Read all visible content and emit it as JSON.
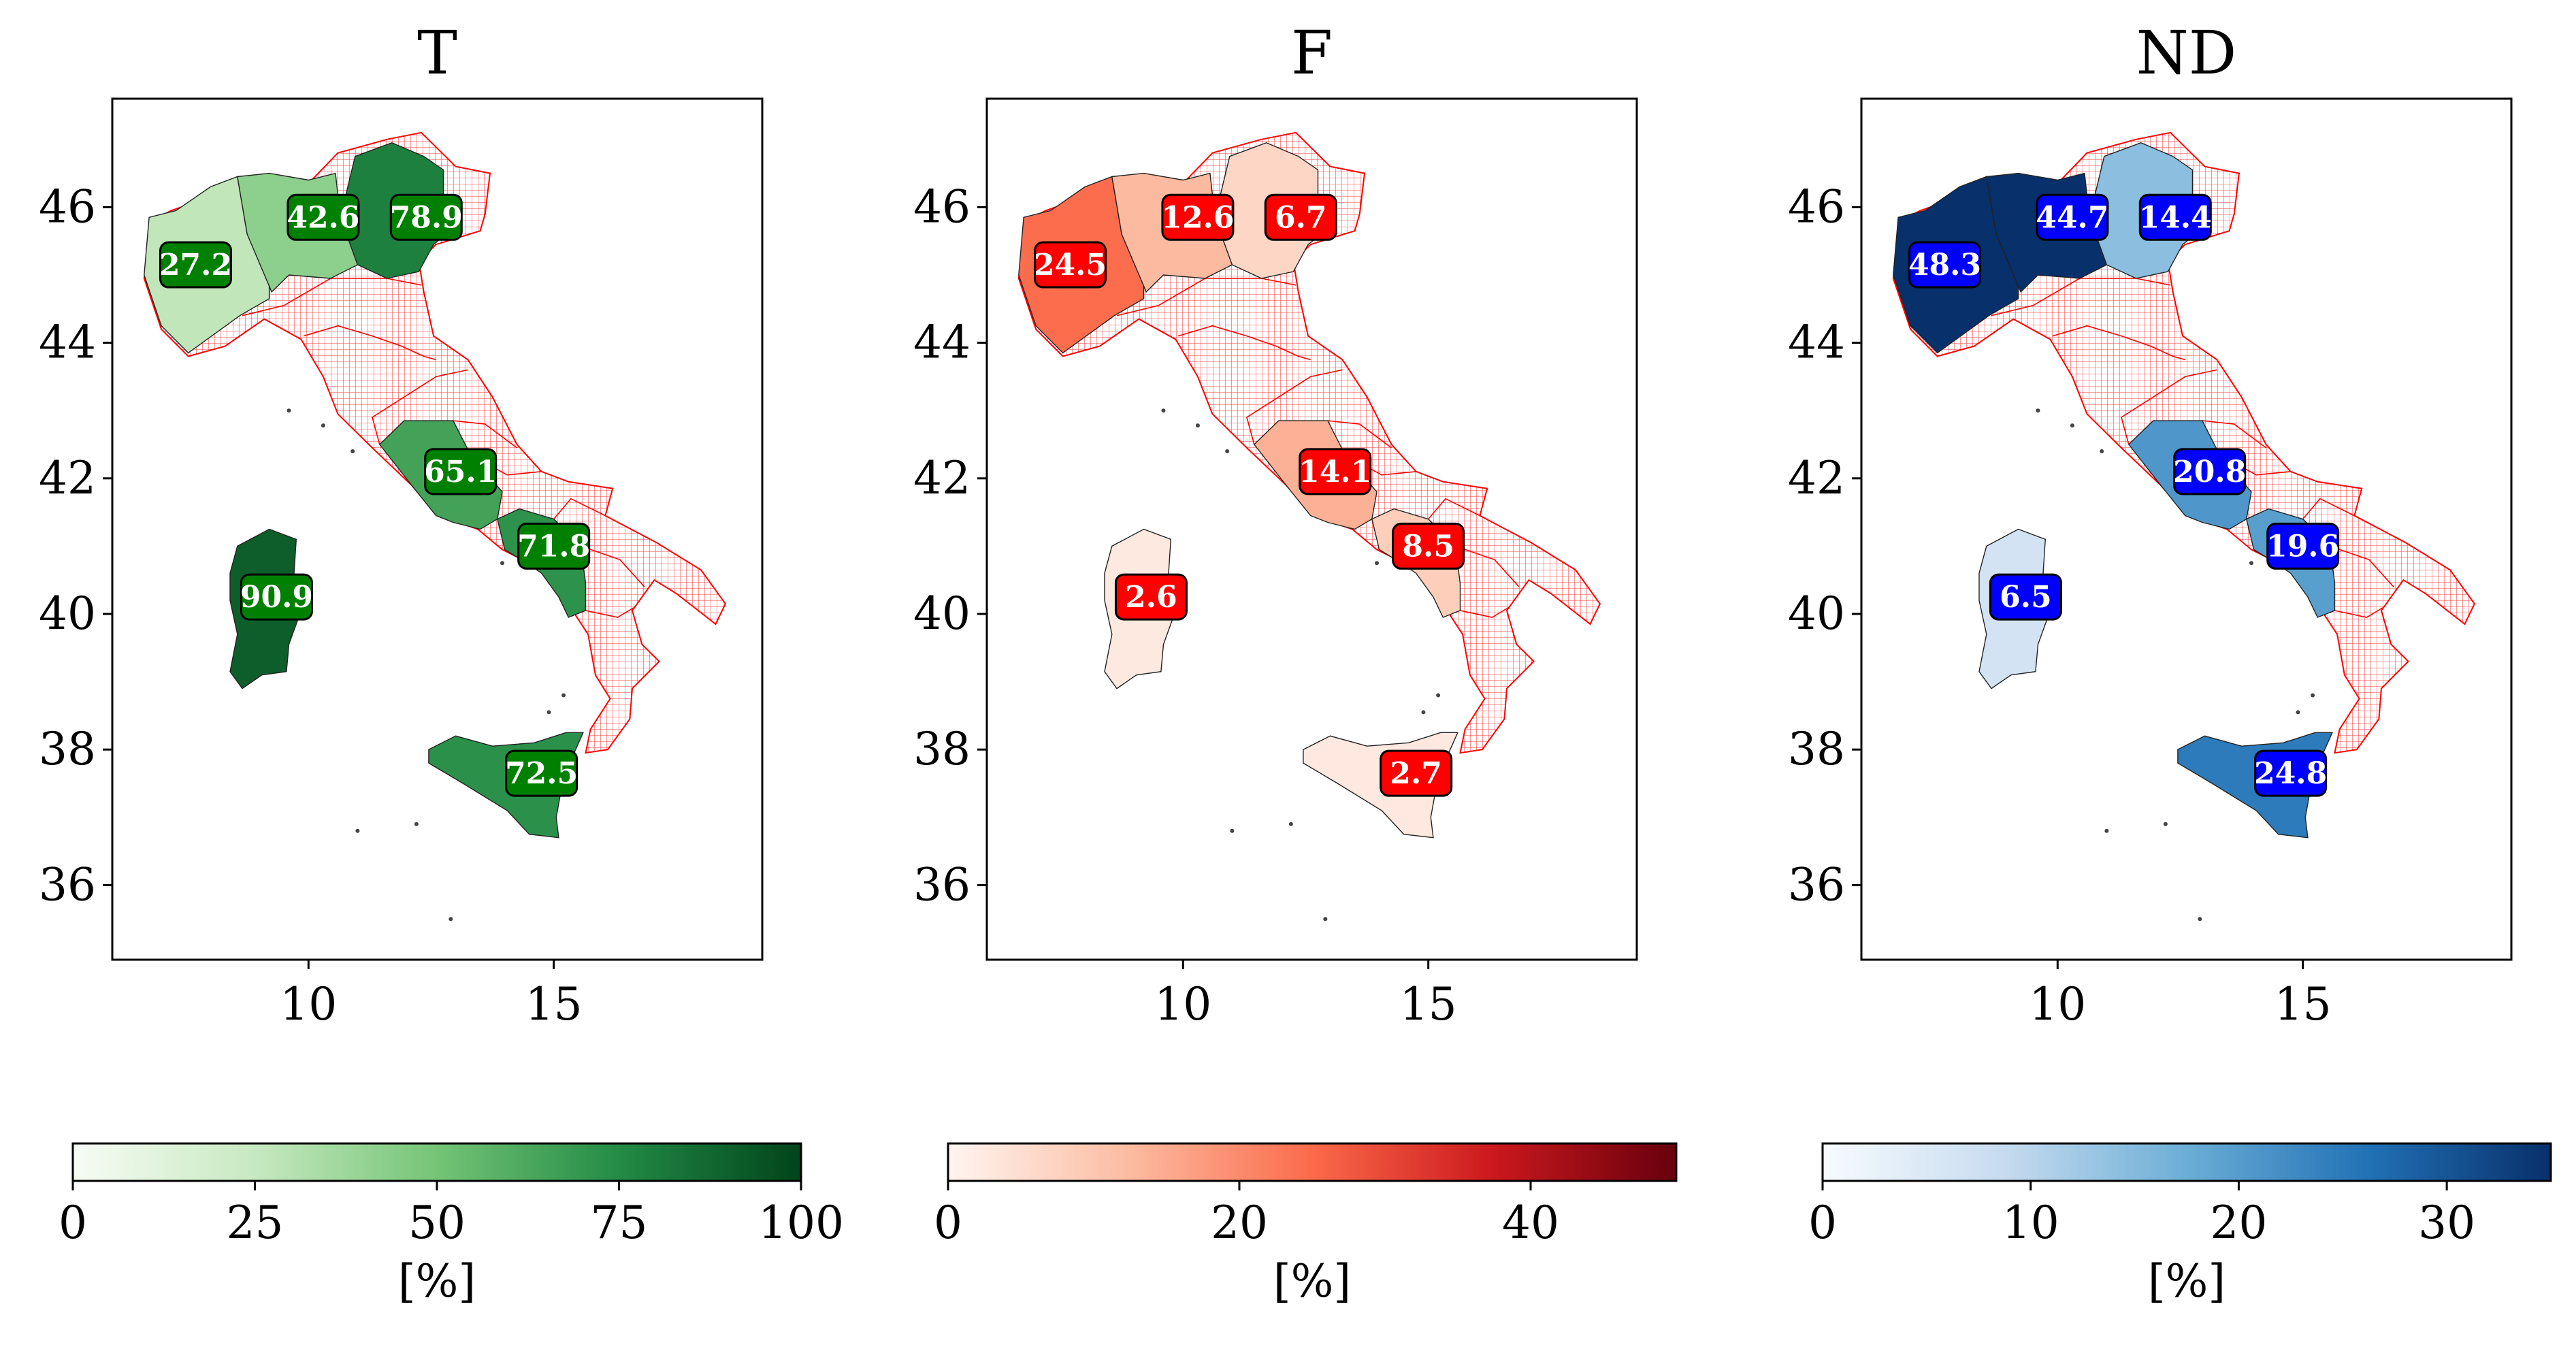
{
  "panels": [
    {
      "title": "T",
      "x_ticks": [
        "10",
        "15"
      ],
      "y_ticks": [
        "46",
        "44",
        "42",
        "40",
        "38",
        "36"
      ],
      "colormap": [
        "#f7fcf5",
        "#c7e9c0",
        "#74c476",
        "#238b45",
        "#00441b"
      ],
      "label_box_color": "#008000",
      "colorbar": {
        "min": 0,
        "max": 100,
        "ticks": [
          "0",
          "25",
          "50",
          "75",
          "100"
        ],
        "label": "[%]"
      },
      "regions": [
        {
          "name": "Piedmont",
          "value": 27.2,
          "label": "27.2"
        },
        {
          "name": "Lombardy",
          "value": 42.6,
          "label": "42.6"
        },
        {
          "name": "Veneto",
          "value": 78.9,
          "label": "78.9"
        },
        {
          "name": "Lazio",
          "value": 65.1,
          "label": "65.1"
        },
        {
          "name": "Campania",
          "value": 71.8,
          "label": "71.8"
        },
        {
          "name": "Sardinia",
          "value": 90.9,
          "label": "90.9"
        },
        {
          "name": "Sicily",
          "value": 72.5,
          "label": "72.5"
        }
      ]
    },
    {
      "title": "F",
      "x_ticks": [
        "10",
        "15"
      ],
      "y_ticks": [
        "46",
        "44",
        "42",
        "40",
        "38",
        "36"
      ],
      "colormap": [
        "#fff5f0",
        "#fcbba1",
        "#fb6a4a",
        "#cb181d",
        "#67000d"
      ],
      "label_box_color": "#ff0000",
      "colorbar": {
        "min": 0,
        "max": 50,
        "ticks": [
          "0",
          "20",
          "40"
        ],
        "label": "[%]"
      },
      "regions": [
        {
          "name": "Piedmont",
          "value": 24.5,
          "label": "24.5"
        },
        {
          "name": "Lombardy",
          "value": 12.6,
          "label": "12.6"
        },
        {
          "name": "Veneto",
          "value": 6.7,
          "label": "6.7"
        },
        {
          "name": "Lazio",
          "value": 14.1,
          "label": "14.1"
        },
        {
          "name": "Campania",
          "value": 8.5,
          "label": "8.5"
        },
        {
          "name": "Sardinia",
          "value": 2.6,
          "label": "2.6"
        },
        {
          "name": "Sicily",
          "value": 2.7,
          "label": "2.7"
        }
      ]
    },
    {
      "title": "ND",
      "x_ticks": [
        "10",
        "15"
      ],
      "y_ticks": [
        "46",
        "44",
        "42",
        "40",
        "38",
        "36"
      ],
      "colormap": [
        "#f7fbff",
        "#c6dbef",
        "#6baed6",
        "#2171b5",
        "#08306b"
      ],
      "label_box_color": "#0000ff",
      "colorbar": {
        "min": 0,
        "max": 35,
        "ticks": [
          "0",
          "10",
          "20",
          "30"
        ],
        "label": "[%]"
      },
      "regions": [
        {
          "name": "Piedmont",
          "value": 48.3,
          "label": "48.3"
        },
        {
          "name": "Lombardy",
          "value": 44.7,
          "label": "44.7"
        },
        {
          "name": "Veneto",
          "value": 14.4,
          "label": "14.4"
        },
        {
          "name": "Lazio",
          "value": 20.8,
          "label": "20.8"
        },
        {
          "name": "Campania",
          "value": 19.6,
          "label": "19.6"
        },
        {
          "name": "Sardinia",
          "value": 6.5,
          "label": "6.5"
        },
        {
          "name": "Sicily",
          "value": 24.8,
          "label": "24.8"
        }
      ]
    }
  ],
  "no_data_hatch_color": "#ff0000"
}
